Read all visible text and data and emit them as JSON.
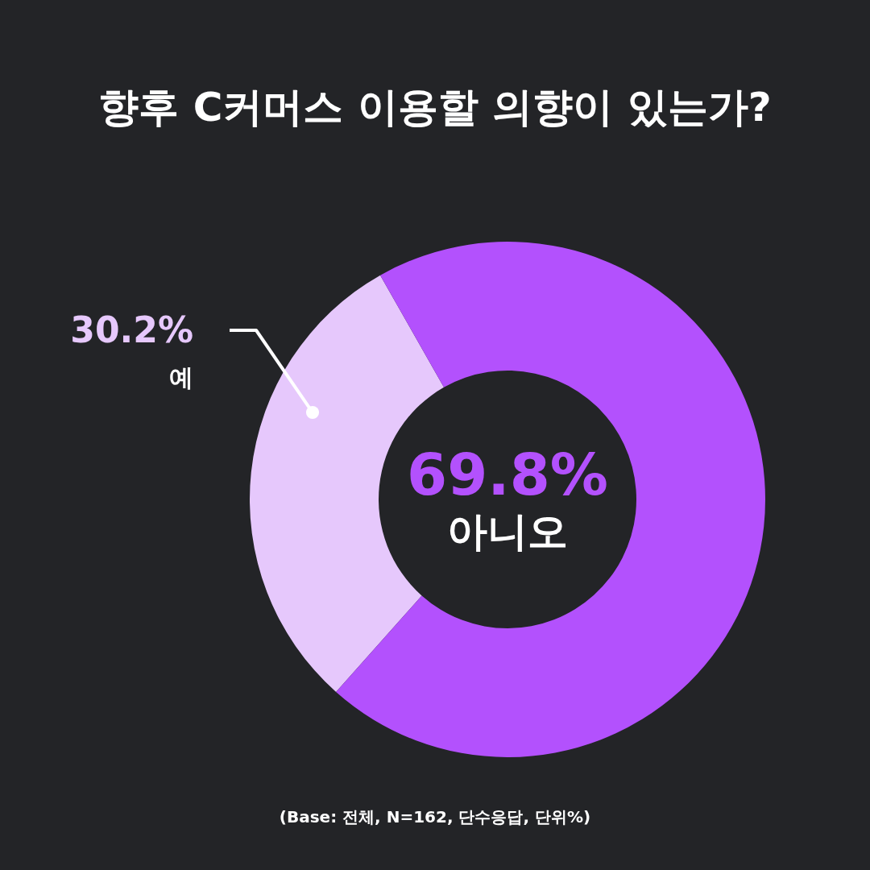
{
  "chart_data": {
    "type": "donut",
    "title": "향후 C커머스 이용할 의향이 있는가?",
    "categories": [
      "예",
      "아니오"
    ],
    "values": [
      30.2,
      69.8
    ],
    "colors": [
      "#e6c8fc",
      "#b351fd"
    ],
    "value_labels": [
      "30.2%",
      "69.8%"
    ],
    "annotations": [
      "(Base: 전체, N=162, 단수응답, 단위%)"
    ]
  }
}
